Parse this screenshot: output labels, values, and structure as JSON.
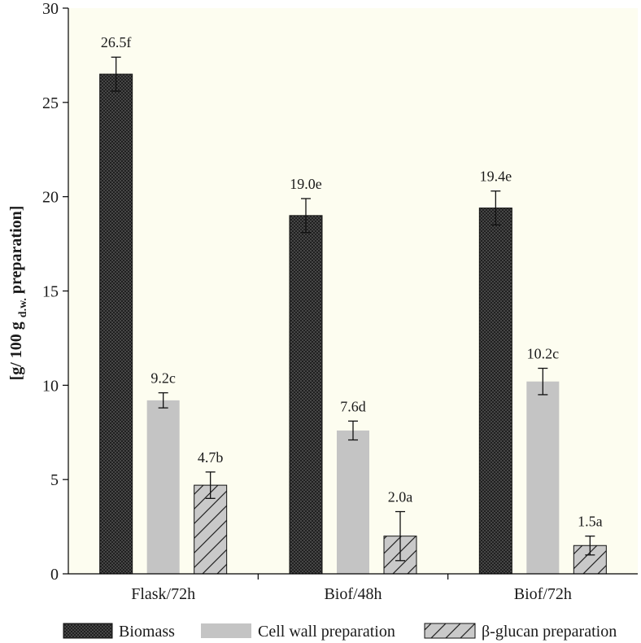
{
  "chart_data": {
    "type": "bar",
    "title": "",
    "xlabel": "",
    "ylabel": {
      "main": "[g/ 100 g",
      "subscript": "d.w.",
      "tail": "preparation]"
    },
    "ylim": [
      0,
      30
    ],
    "yticks": [
      0,
      5,
      10,
      15,
      20,
      25,
      30
    ],
    "categories": [
      "Flask/72h",
      "Biof/48h",
      "Biof/72h"
    ],
    "series": [
      {
        "name": "Biomass",
        "pattern": "crosshatch",
        "values": [
          26.5,
          19.0,
          19.4
        ],
        "errors": [
          0.9,
          0.9,
          0.9
        ],
        "labels": [
          "26.5f",
          "19.0e",
          "19.4e"
        ]
      },
      {
        "name": "Cell wall preparation",
        "pattern": "solid",
        "values": [
          9.2,
          7.6,
          10.2
        ],
        "errors": [
          0.4,
          0.5,
          0.7
        ],
        "labels": [
          "9.2c",
          "7.6d",
          "10.2c"
        ]
      },
      {
        "name": "β-glucan preparation",
        "pattern": "diagonal",
        "values": [
          4.7,
          2.0,
          1.5
        ],
        "errors": [
          0.7,
          1.3,
          0.5
        ],
        "labels": [
          "4.7b",
          "2.0a",
          "1.5a"
        ]
      }
    ],
    "legend_position": "bottom",
    "grid": false,
    "colors": {
      "plot_background": "#fdfdf0",
      "biomass_fill": "#3a3a3a",
      "cell_wall_fill": "#c4c4c4",
      "beta_glucan_fill": "#c9c9c9",
      "axis": "#000000"
    }
  }
}
